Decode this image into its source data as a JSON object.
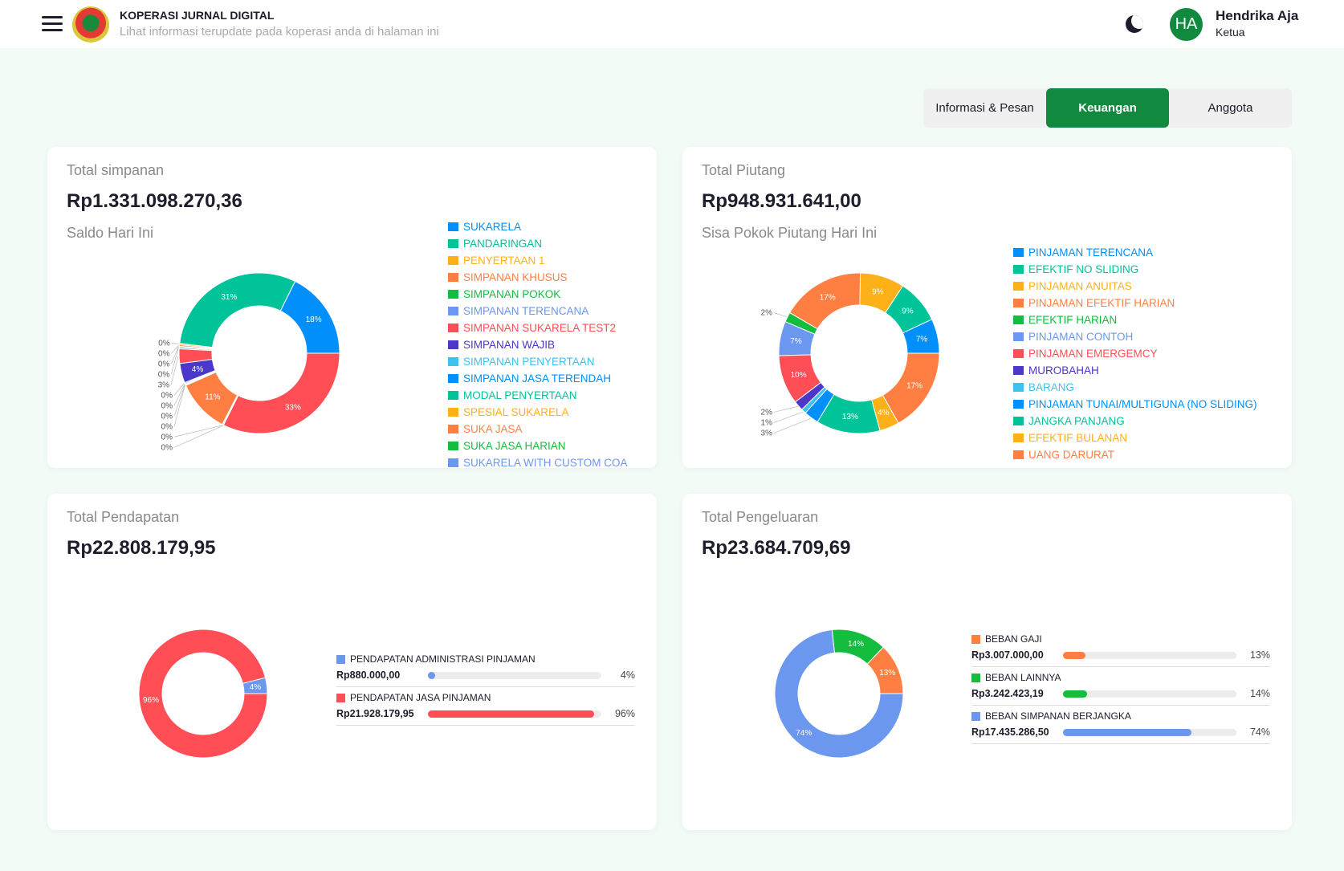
{
  "header": {
    "title": "KOPERASI JURNAL DIGITAL",
    "subtitle": "Lihat informasi terupdate pada koperasi anda di halaman ini",
    "user_initials": "HA",
    "user_name": "Hendrika Aja",
    "user_role": "Ketua",
    "icons": [
      "menu-icon",
      "moon-icon"
    ]
  },
  "tabs": [
    {
      "label": "Informasi & Pesan",
      "active": false
    },
    {
      "label": "Keuangan",
      "active": true
    },
    {
      "label": "Anggota",
      "active": false
    }
  ],
  "colors": [
    "#008ffb",
    "#00c39a",
    "#feb019",
    "#ff7f43",
    "#14bd3d",
    "#6b97ee",
    "#ff4e55",
    "#4b37c9",
    "#3ec1ee"
  ],
  "simpanan": {
    "title": "Total simpanan",
    "amount": "Rp1.331.098.270,36",
    "subtitle": "Saldo Hari Ini"
  },
  "piutang": {
    "title": "Total Piutang",
    "amount": "Rp948.931.641,00",
    "subtitle": "Sisa Pokok Piutang Hari Ini"
  },
  "pendapatan": {
    "title": "Total Pendapatan",
    "amount": "Rp22.808.179,95"
  },
  "pengeluaran": {
    "title": "Total Pengeluaran",
    "amount": "Rp23.684.709,69"
  },
  "chart_data": [
    {
      "type": "pie",
      "name": "simpanan",
      "labels": [
        "SUKARELA",
        "PANDARINGAN",
        "PENYERTAAN 1",
        "SIMPANAN KHUSUS",
        "SIMPANAN POKOK",
        "SIMPANAN TERENCANA",
        "SIMPANAN SUKARELA TEST2",
        "SIMPANAN WAJIB",
        "SIMPANAN PENYERTAAN",
        "SIMPANAN JASA TERENDAH",
        "MODAL PENYERTAAN",
        "SPESIAL SUKARELA",
        "SUKA JASA",
        "SUKA JASA HARIAN",
        "SUKARELA WITH CUSTOM COA",
        null
      ],
      "values": [
        18,
        31,
        0.3,
        0.3,
        0.2,
        0.3,
        3,
        4,
        0.2,
        0.2,
        0.1,
        0.1,
        11,
        0.2,
        0.1,
        33
      ]
    },
    {
      "type": "pie",
      "name": "piutang",
      "labels": [
        "PINJAMAN TERENCANA",
        "EFEKTIF NO SLIDING",
        "PINJAMAN ANUITAS",
        "PINJAMAN EFEKTIF HARIAN",
        "EFEKTIF HARIAN",
        "PINJAMAN CONTOH",
        "PINJAMAN EMERGEMCY",
        "MUROBAHAH",
        "BARANG",
        "PINJAMAN TUNAI/MULTIGUNA (NO SLIDING)",
        "JANGKA PANJANG",
        "EFEKTIF BULANAN",
        "UANG DARURAT"
      ],
      "values": [
        7,
        9,
        9,
        17,
        2,
        7,
        10,
        2,
        1,
        3,
        13,
        4,
        17
      ]
    },
    {
      "type": "pie",
      "name": "pendapatan",
      "labels": [
        "PENDAPATAN ADMINISTRASI PINJAMAN",
        "PENDAPATAN JASA PINJAMAN"
      ],
      "amounts": [
        "Rp880.000,00",
        "Rp21.928.179,95"
      ],
      "values": [
        4,
        96
      ],
      "colors": [
        "#6b97ee",
        "#ff4e55"
      ]
    },
    {
      "type": "pie",
      "name": "pengeluaran",
      "labels": [
        "BEBAN GAJI",
        "BEBAN LAINNYA",
        "BEBAN SIMPANAN BERJANGKA"
      ],
      "amounts": [
        "Rp3.007.000,00",
        "Rp3.242.423,19",
        "Rp17.435.286,50"
      ],
      "values": [
        13,
        14,
        74
      ],
      "colors": [
        "#ff7f43",
        "#14bd3d",
        "#6b97ee"
      ]
    }
  ]
}
